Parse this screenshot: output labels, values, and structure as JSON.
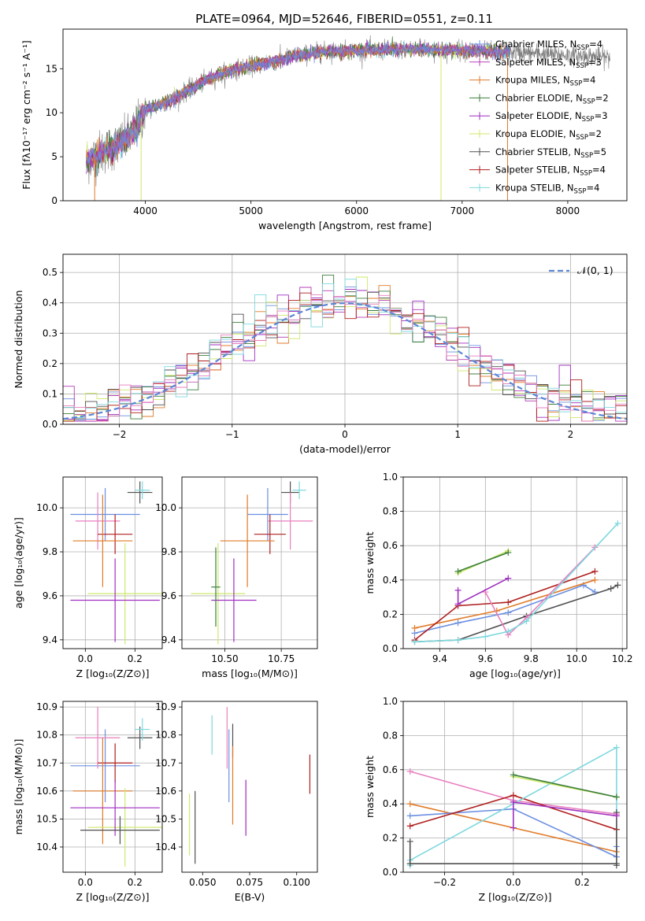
{
  "figure_title": "PLATE=0964, MJD=52646, FIBERID=0551, z=0.11",
  "colors": {
    "Chabrier MILES": "#6b8fe0",
    "Salpeter MILES": "#b43fb4",
    "Kroupa MILES": "#e07b28",
    "Chabrier ELODIE": "#3c7f3c",
    "Salpeter ELODIE": "#9f2fbf",
    "Kroupa ELODIE": "#cde86a",
    "Chabrier STELIB": "#505050",
    "Salpeter STELIB": "#b01e1e",
    "Kroupa STELIB": "#7fd8de",
    "pink": "#e87fbf",
    "normal": "#5b87d6"
  },
  "chart_data": [
    {
      "id": "spectrum",
      "type": "line",
      "xlabel": "wavelength [Angstrom, rest frame]",
      "ylabel": "Flux [fλ10⁻¹⁷ erg cm⁻² s⁻¹ A⁻¹]",
      "xlim": [
        3220,
        8560
      ],
      "ylim": [
        0,
        19.5
      ],
      "xticks": [
        4000,
        5000,
        6000,
        7000,
        8000
      ],
      "yticks": [
        0,
        5,
        10,
        15
      ],
      "grid": false,
      "legend_position": "right",
      "legend": [
        {
          "label": "Chabrier MILES",
          "n": "4",
          "color": "#6b8fe0"
        },
        {
          "label": "Salpeter MILES",
          "n": "3",
          "color": "#b43fb4"
        },
        {
          "label": "Kroupa MILES",
          "n": "4",
          "color": "#e07b28"
        },
        {
          "label": "Chabrier ELODIE",
          "n": "2",
          "color": "#3c7f3c"
        },
        {
          "label": "Salpeter ELODIE",
          "n": "3",
          "color": "#9f2fbf"
        },
        {
          "label": "Kroupa ELODIE",
          "n": "2",
          "color": "#cde86a"
        },
        {
          "label": "Chabrier STELIB",
          "n": "5",
          "color": "#505050"
        },
        {
          "label": "Salpeter STELIB",
          "n": "4",
          "color": "#b01e1e"
        },
        {
          "label": "Kroupa STELIB",
          "n": "4",
          "color": "#7fd8de"
        }
      ],
      "continuum": {
        "x": [
          3440,
          3600,
          3800,
          3900,
          4000,
          4200,
          4400,
          4600,
          4800,
          5000,
          5200,
          5400,
          5600,
          5800,
          6000,
          6200,
          6400,
          6600,
          6800,
          7000,
          7200,
          7400
        ],
        "y": [
          4.4,
          5.6,
          6.7,
          8.0,
          10.3,
          11.2,
          12.5,
          13.8,
          14.8,
          15.3,
          15.8,
          16.4,
          16.8,
          17.0,
          17.1,
          17.1,
          17.2,
          17.2,
          17.1,
          17.1,
          17.0,
          16.9
        ]
      },
      "observed_noise_range": [
        3440,
        8400
      ],
      "model_range": [
        3440,
        7450
      ],
      "spikes": [
        {
          "x": 3520,
          "y": 0
        },
        {
          "x": 3960,
          "y": 0
        },
        {
          "x": 6800,
          "y": 0
        },
        {
          "x": 7430,
          "y": 0
        }
      ]
    },
    {
      "id": "residuals",
      "type": "line",
      "xlabel": "(data-model)/error",
      "ylabel": "Normed distribution",
      "xlim": [
        -2.5,
        2.5
      ],
      "ylim": [
        0,
        0.56
      ],
      "xticks": [
        -2,
        -1,
        0,
        1,
        2
      ],
      "yticks": [
        0.0,
        0.1,
        0.2,
        0.3,
        0.4,
        0.5
      ],
      "grid": true,
      "legend_position": "top-right",
      "normal_label": "𝒩(0, 1)",
      "bin_width": 0.1
    },
    {
      "id": "age_vs_Z",
      "type": "scatter",
      "xlabel": "Z [log₁₀(Z/Z⊙)]",
      "ylabel": "age  [log₁₀(age/yr)]",
      "xlim": [
        -0.09,
        0.31
      ],
      "ylim": [
        9.36,
        10.14
      ],
      "xticks": [
        0.0,
        0.2
      ],
      "yticks": [
        9.4,
        9.6,
        9.8,
        10.0
      ],
      "grid": true,
      "errorbars": [
        {
          "x": 0.22,
          "xerr": 0.05,
          "y": 10.07,
          "yerr": 0.05,
          "color": "#505050"
        },
        {
          "x": 0.23,
          "xerr": 0.03,
          "y": 10.08,
          "yerr": 0.04,
          "color": "#7fd8de"
        },
        {
          "x": 0.08,
          "xerr": 0.14,
          "y": 9.97,
          "yerr": 0.12,
          "color": "#6b8fe0"
        },
        {
          "x": 0.05,
          "xerr": 0.09,
          "y": 9.94,
          "yerr": 0.13,
          "color": "#e87fbf"
        },
        {
          "x": 0.12,
          "xerr": 0.07,
          "y": 9.88,
          "yerr": 0.09,
          "color": "#b01e1e"
        },
        {
          "x": 0.07,
          "xerr": 0.12,
          "y": 9.85,
          "yerr": 0.21,
          "color": "#e07b28"
        },
        {
          "x": 0.16,
          "xerr": 0.15,
          "y": 9.61,
          "yerr": 0.23,
          "color": "#cde86a"
        },
        {
          "x": 0.12,
          "xerr": 0.18,
          "y": 9.58,
          "yerr": 0.19,
          "color": "#9f2fbf"
        }
      ]
    },
    {
      "id": "age_vs_mass",
      "type": "scatter",
      "xlabel": "mass [log₁₀(M/M⊙)]",
      "ylabel": "",
      "xlim": [
        10.31,
        10.91
      ],
      "ylim": [
        9.36,
        10.14
      ],
      "xticks": [
        10.5,
        10.75
      ],
      "yticks": [
        9.4,
        9.6,
        9.8,
        10.0
      ],
      "grid": true,
      "errorbars": [
        {
          "x": 10.79,
          "xerr": 0.04,
          "y": 10.07,
          "yerr": 0.05,
          "color": "#505050"
        },
        {
          "x": 10.83,
          "xerr": 0.03,
          "y": 10.08,
          "yerr": 0.04,
          "color": "#7fd8de"
        },
        {
          "x": 10.69,
          "xerr": 0.09,
          "y": 9.97,
          "yerr": 0.12,
          "color": "#6b8fe0"
        },
        {
          "x": 10.79,
          "xerr": 0.1,
          "y": 9.94,
          "yerr": 0.13,
          "color": "#e87fbf"
        },
        {
          "x": 10.7,
          "xerr": 0.07,
          "y": 9.88,
          "yerr": 0.09,
          "color": "#b01e1e"
        },
        {
          "x": 10.6,
          "xerr": 0.12,
          "y": 9.85,
          "yerr": 0.21,
          "color": "#e07b28"
        },
        {
          "x": 10.47,
          "xerr": 0.12,
          "y": 9.61,
          "yerr": 0.23,
          "color": "#cde86a"
        },
        {
          "x": 10.54,
          "xerr": 0.1,
          "y": 9.58,
          "yerr": 0.19,
          "color": "#9f2fbf"
        },
        {
          "x": 10.46,
          "xerr": 0.02,
          "y": 9.64,
          "yerr": 0.18,
          "color": "#3c7f3c"
        }
      ]
    },
    {
      "id": "weight_vs_age",
      "type": "line",
      "xlabel": "age  [log₁₀(age/yr)]",
      "ylabel": "mass weight",
      "xlim": [
        9.24,
        10.22
      ],
      "ylim": [
        0,
        1.0
      ],
      "xticks": [
        9.4,
        9.6,
        9.8,
        10.0,
        10.2
      ],
      "yticks": [
        0.0,
        0.2,
        0.4,
        0.6,
        0.8,
        1.0
      ],
      "grid": true,
      "series": [
        {
          "color": "#505050",
          "x": [
            9.29,
            9.48,
            9.78,
            10.15,
            10.18
          ],
          "y": [
            0.04,
            0.05,
            0.19,
            0.35,
            0.37
          ]
        },
        {
          "color": "#6b8fe0",
          "x": [
            9.29,
            9.48,
            9.7,
            10.03,
            10.08
          ],
          "y": [
            0.09,
            0.15,
            0.21,
            0.37,
            0.33
          ]
        },
        {
          "color": "#e07b28",
          "x": [
            9.29,
            9.65,
            10.08
          ],
          "y": [
            0.12,
            0.22,
            0.4
          ]
        },
        {
          "color": "#b01e1e",
          "x": [
            9.29,
            9.48,
            9.7,
            10.08
          ],
          "y": [
            0.05,
            0.25,
            0.27,
            0.45
          ]
        },
        {
          "color": "#e87fbf",
          "x": [
            9.6,
            9.7,
            9.78,
            10.08
          ],
          "y": [
            0.33,
            0.08,
            0.18,
            0.59
          ]
        },
        {
          "color": "#7fd8de",
          "x": [
            9.29,
            9.48,
            9.6,
            9.7,
            9.78,
            10.18
          ],
          "y": [
            0.04,
            0.05,
            0.07,
            0.1,
            0.16,
            0.73
          ]
        },
        {
          "color": "#9f2fbf",
          "x": [
            9.48,
            9.48,
            9.7
          ],
          "y": [
            0.34,
            0.26,
            0.41
          ]
        },
        {
          "color": "#cde86a",
          "x": [
            9.48,
            9.7
          ],
          "y": [
            0.44,
            0.57
          ]
        },
        {
          "color": "#3c7f3c",
          "x": [
            9.48,
            9.7
          ],
          "y": [
            0.45,
            0.56
          ]
        }
      ]
    },
    {
      "id": "mass_vs_Z",
      "type": "scatter",
      "xlabel": "Z [log₁₀(Z/Z⊙)]",
      "ylabel": "mass [log₁₀(M/M⊙)]",
      "xlim": [
        -0.09,
        0.31
      ],
      "ylim": [
        10.31,
        10.92
      ],
      "xticks": [
        0.0,
        0.2
      ],
      "yticks": [
        10.4,
        10.5,
        10.6,
        10.7,
        10.8,
        10.9
      ],
      "grid": true,
      "errorbars": [
        {
          "x": 0.22,
          "xerr": 0.05,
          "y": 10.79,
          "yerr": 0.04,
          "color": "#505050"
        },
        {
          "x": 0.23,
          "xerr": 0.03,
          "y": 10.82,
          "yerr": 0.04,
          "color": "#7fd8de"
        },
        {
          "x": 0.08,
          "xerr": 0.14,
          "y": 10.69,
          "yerr": 0.13,
          "color": "#6b8fe0"
        },
        {
          "x": 0.05,
          "xerr": 0.09,
          "y": 10.79,
          "yerr": 0.11,
          "color": "#e87fbf"
        },
        {
          "x": 0.12,
          "xerr": 0.07,
          "y": 10.7,
          "yerr": 0.07,
          "color": "#b01e1e"
        },
        {
          "x": 0.07,
          "xerr": 0.12,
          "y": 10.6,
          "yerr": 0.19,
          "color": "#e07b28"
        },
        {
          "x": 0.16,
          "xerr": 0.15,
          "y": 10.47,
          "yerr": 0.14,
          "color": "#cde86a"
        },
        {
          "x": 0.12,
          "xerr": 0.18,
          "y": 10.54,
          "yerr": 0.1,
          "color": "#9f2fbf"
        },
        {
          "x": 0.14,
          "xerr": 0.16,
          "y": 10.46,
          "yerr": 0.05,
          "color": "#505050"
        }
      ]
    },
    {
      "id": "mass_vs_ebv",
      "type": "scatter",
      "xlabel": "E(B-V)",
      "ylabel": "",
      "xlim": [
        0.039,
        0.111
      ],
      "ylim": [
        10.31,
        10.92
      ],
      "xticks": [
        0.05,
        0.075,
        0.1
      ],
      "xtick_labels": [
        "0.050",
        "0.075",
        "0.100"
      ],
      "yticks": [
        10.4,
        10.5,
        10.6,
        10.7,
        10.8,
        10.9
      ],
      "grid": false,
      "errorbars": [
        {
          "x": 0.043,
          "yerr": 0.11,
          "y": 10.48,
          "color": "#cde86a"
        },
        {
          "x": 0.046,
          "yerr": 0.13,
          "y": 10.47,
          "color": "#505050"
        },
        {
          "x": 0.055,
          "yerr": 0.07,
          "y": 10.8,
          "color": "#7fd8de"
        },
        {
          "x": 0.063,
          "yerr": 0.11,
          "y": 10.79,
          "color": "#e87fbf"
        },
        {
          "x": 0.064,
          "yerr": 0.13,
          "y": 10.69,
          "color": "#6b8fe0"
        },
        {
          "x": 0.066,
          "yerr": 0.06,
          "y": 10.78,
          "color": "#505050"
        },
        {
          "x": 0.066,
          "yerr": 0.14,
          "y": 10.62,
          "color": "#e07b28"
        },
        {
          "x": 0.073,
          "yerr": 0.1,
          "y": 10.54,
          "color": "#9f2fbf"
        },
        {
          "x": 0.107,
          "yerr": 0.07,
          "y": 10.66,
          "color": "#b01e1e"
        }
      ]
    },
    {
      "id": "weight_vs_Z",
      "type": "line",
      "xlabel": "Z [log₁₀(Z/Z⊙)]",
      "ylabel": "mass weight",
      "xlim": [
        -0.32,
        0.33
      ],
      "ylim": [
        0,
        1.0
      ],
      "xticks": [
        -0.2,
        0.0,
        0.2
      ],
      "yticks": [
        0.0,
        0.2,
        0.4,
        0.6,
        0.8,
        1.0
      ],
      "grid": true,
      "series": [
        {
          "color": "#e87fbf",
          "x": [
            -0.3,
            0.0,
            0.3
          ],
          "y": [
            0.59,
            0.42,
            0.34
          ]
        },
        {
          "color": "#e07b28",
          "x": [
            -0.3,
            0.0,
            0.3
          ],
          "y": [
            0.4,
            0.26,
            0.12
          ]
        },
        {
          "color": "#6b8fe0",
          "x": [
            -0.3,
            0.0,
            0.3,
            0.3
          ],
          "y": [
            0.33,
            0.37,
            0.09,
            0.15
          ]
        },
        {
          "color": "#b01e1e",
          "x": [
            -0.3,
            0.0,
            0.3
          ],
          "y": [
            0.27,
            0.45,
            0.25
          ]
        },
        {
          "color": "#7fd8de",
          "x": [
            -0.3,
            -0.3,
            0.3,
            0.3
          ],
          "y": [
            0.04,
            0.07,
            0.73,
            0.35
          ]
        },
        {
          "color": "#505050",
          "x": [
            -0.3,
            -0.3,
            0.3,
            0.3,
            0.3
          ],
          "y": [
            0.18,
            0.05,
            0.05,
            0.35,
            0.04
          ]
        },
        {
          "color": "#9f2fbf",
          "x": [
            0.0,
            0.0,
            0.3
          ],
          "y": [
            0.26,
            0.41,
            0.33
          ]
        },
        {
          "color": "#cde86a",
          "x": [
            0.0,
            0.3
          ],
          "y": [
            0.56,
            0.44
          ]
        },
        {
          "color": "#3c7f3c",
          "x": [
            0.0,
            0.3
          ],
          "y": [
            0.57,
            0.44
          ]
        }
      ]
    }
  ]
}
